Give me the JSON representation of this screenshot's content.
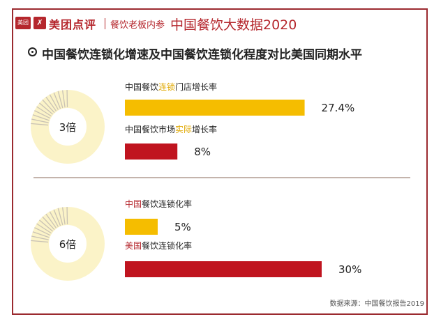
{
  "header": {
    "logo_text": "美团",
    "brand": "美团点评",
    "partner": "餐饮老板内参",
    "report_title": "中国餐饮大数据2020"
  },
  "subtitle": "中国餐饮连锁化增速及中国餐饮连锁化程度对比美国同期水平",
  "colors": {
    "yellow": "#f5bd00",
    "red": "#c0141f",
    "frame": "#9b2a2f"
  },
  "chart_data": [
    {
      "type": "bar",
      "ratio_label": "3倍",
      "bars": [
        {
          "label_parts": [
            "中国餐饮",
            "连锁",
            "门店增长率"
          ],
          "highlight": 1,
          "highlight_color": "yellow",
          "value": 27.4,
          "value_label": "27.4%",
          "color": "#f5bd00"
        },
        {
          "label_parts": [
            "中国餐饮市场",
            "实际",
            "增长率"
          ],
          "highlight": 1,
          "highlight_color": "yellow",
          "value": 8,
          "value_label": "8%",
          "color": "#c0141f"
        }
      ]
    },
    {
      "type": "bar",
      "ratio_label": "6倍",
      "bars": [
        {
          "label_parts": [
            "中国",
            "餐饮连锁化率"
          ],
          "highlight": 0,
          "highlight_color": "red",
          "value": 5,
          "value_label": "5%",
          "color": "#f5bd00"
        },
        {
          "label_parts": [
            "美国",
            "餐饮连锁化率"
          ],
          "highlight": 0,
          "highlight_color": "red",
          "value": 30,
          "value_label": "30%",
          "color": "#c0141f"
        }
      ]
    }
  ],
  "source": "数据来源：中国餐饮报告2019"
}
